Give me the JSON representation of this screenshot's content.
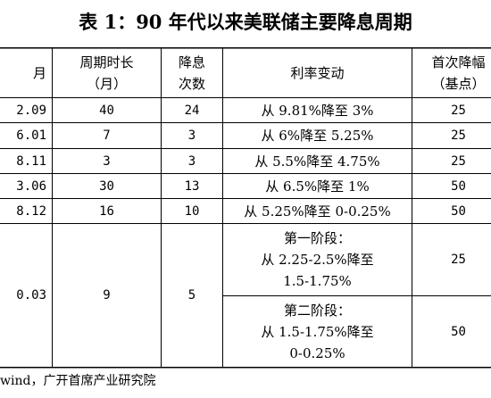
{
  "title": "表 1：90 年代以来美联储主要降息周期",
  "headers": {
    "period": "月",
    "duration_line1": "周期时长",
    "duration_line2": "（月）",
    "cuts_line1": "降息",
    "cuts_line2": "次数",
    "rate_change": "利率变动",
    "first_cut_line1": "首次降幅",
    "first_cut_line2": "（基点）"
  },
  "rows": [
    {
      "period": "2.09",
      "duration": "40",
      "cuts": "24",
      "rate_change": "从 9.81%降至 3%",
      "first_cut": "25"
    },
    {
      "period": "6.01",
      "duration": "7",
      "cuts": "3",
      "rate_change": "从 6%降至 5.25%",
      "first_cut": "25"
    },
    {
      "period": "8.11",
      "duration": "3",
      "cuts": "3",
      "rate_change": "从 5.5%降至 4.75%",
      "first_cut": "25"
    },
    {
      "period": "3.06",
      "duration": "30",
      "cuts": "13",
      "rate_change": "从 6.5%降至 1%",
      "first_cut": "50"
    },
    {
      "period": "8.12",
      "duration": "16",
      "cuts": "10",
      "rate_change": "从 5.25%降至 0-0.25%",
      "first_cut": "50"
    }
  ],
  "last_row": {
    "period": "0.03",
    "duration": "9",
    "cuts": "5",
    "phase1": {
      "label": "第一阶段：",
      "line2": "从 2.25-2.5%降至",
      "line3": "1.5-1.75%",
      "first_cut": "25"
    },
    "phase2": {
      "label": "第二阶段：",
      "line2": "从 1.5-1.75%降至",
      "line3": "0-0.25%",
      "first_cut": "50"
    }
  },
  "source": "wind，广开首席产业研究院"
}
